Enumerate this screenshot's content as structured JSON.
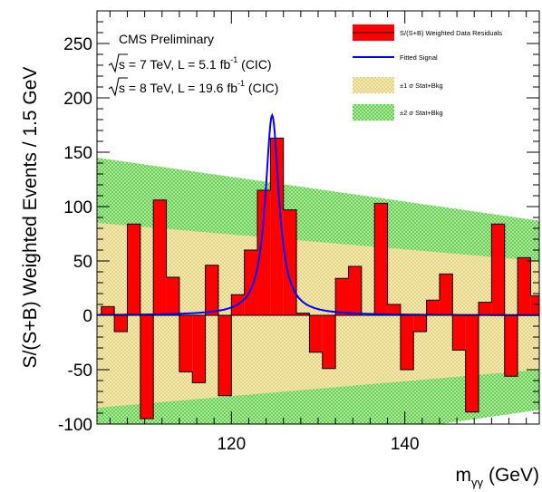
{
  "chart_data": {
    "type": "bar",
    "xlabel": "m",
    "xlabel_sub": "γγ",
    "xlabel_unit": "(GeV)",
    "ylabel": "S/(S+B) Weighted Events / 1.5 GeV",
    "xlim": [
      104.5,
      155.5
    ],
    "ylim": [
      -100,
      280
    ],
    "x_ticks": [
      120,
      140
    ],
    "x_tick_labels": [
      "120",
      "140"
    ],
    "y_ticks": [
      -100,
      -50,
      0,
      50,
      100,
      150,
      200,
      250
    ],
    "y_tick_labels": [
      "-100",
      "-50",
      "0",
      "50",
      "100",
      "150",
      "200",
      "250"
    ],
    "annotations": {
      "experiment": "CMS Preliminary",
      "line1_pre": "s",
      "line1_post": " = 7 TeV, L = 5.1 fb",
      "line1_exp": "-1",
      "line1_end": " (CIC)",
      "line2_pre": "s",
      "line2_post": " = 8 TeV, L = 19.6 fb",
      "line2_exp": "-1",
      "line2_end": " (CIC)"
    },
    "legend": [
      {
        "label": "S/(S+B) Weighted Data Residuals",
        "kind": "bar"
      },
      {
        "label": "Fitted Signal",
        "kind": "line"
      },
      {
        "label": "±1 σ Stat+Bkg",
        "kind": "band1"
      },
      {
        "label": "±2 σ Stat+Bkg",
        "kind": "band2"
      }
    ],
    "colors": {
      "residuals": "#ff0000",
      "signal": "#0000ff",
      "band1": "#f2e6a0",
      "band2": "#7fdc6a"
    },
    "bin_edges_start": 105,
    "bin_width": 1.5,
    "values": [
      8,
      -15,
      84,
      -95,
      106,
      35,
      -52,
      -62,
      46,
      -74,
      19,
      60,
      115,
      163,
      97,
      2,
      -34,
      -49,
      34,
      45,
      0,
      103,
      10,
      -50,
      -15,
      14,
      38,
      -32,
      -89,
      12,
      84,
      -56,
      53,
      18
    ],
    "signal_peak": {
      "mass": 124.7,
      "amplitude": 184,
      "width": 0.95
    },
    "band1_half_width": {
      "low_mass": 85,
      "high_mass": 50
    },
    "band2_half_width": {
      "low_mass": 145,
      "high_mass": 87
    }
  }
}
